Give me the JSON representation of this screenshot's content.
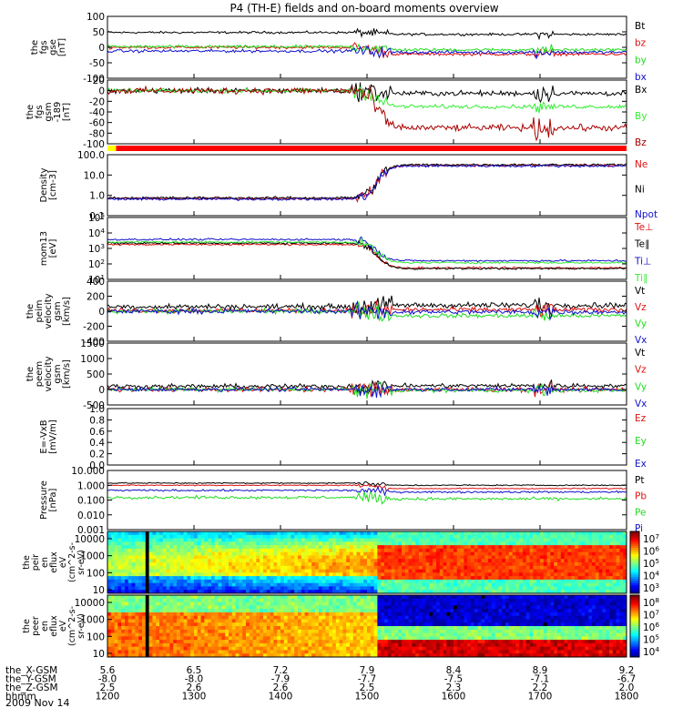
{
  "title": "P4 (TH-E) fields and on-board moments overview",
  "date_label": "2009 Nov 14",
  "colors": {
    "black": "#000000",
    "red": "#dd1111",
    "green": "#22dd22",
    "blue": "#1111cc",
    "darkred": "#aa0000",
    "bright_green": "#33ee33",
    "bar_yellow": "#ffff00",
    "bar_red": "#ff0000"
  },
  "chart_data": {
    "type": "line",
    "x_range": [
      "1200",
      "1800"
    ],
    "ephemeris": {
      "row_labels": [
        "the_X-GSM",
        "the_Y-GSM",
        "the_Z-GSM",
        "hhmm"
      ],
      "columns": [
        [
          "5.6",
          "-8.0",
          "2.5",
          "1200"
        ],
        [
          "6.5",
          "-8.0",
          "2.6",
          "1300"
        ],
        [
          "7.2",
          "-7.9",
          "2.6",
          "1400"
        ],
        [
          "7.9",
          "-7.7",
          "2.5",
          "1500"
        ],
        [
          "8.4",
          "-7.5",
          "2.3",
          "1600"
        ],
        [
          "8.9",
          "-7.1",
          "2.2",
          "1700"
        ],
        [
          "9.2",
          "-6.7",
          "2.0",
          "1800"
        ]
      ]
    },
    "mode_bar": [
      {
        "from": "1200",
        "to": "1210",
        "color": "yellow"
      },
      {
        "from": "1210",
        "to": "1800",
        "color": "red"
      }
    ],
    "panels": [
      {
        "id": "fgs_gse",
        "ylabel": [
          "the",
          "fgs",
          "gse",
          "[nT]"
        ],
        "scale": "linear",
        "ylim": [
          -100,
          100
        ],
        "ticks": [
          "100",
          "50",
          "0",
          "-50",
          "-100"
        ],
        "series": [
          {
            "name": "Bt",
            "color": "black",
            "pre": 48,
            "post": 42,
            "noise": 3
          },
          {
            "name": "bz",
            "color": "red",
            "pre": 0,
            "post": -22,
            "noise": 4
          },
          {
            "name": "by",
            "color": "green",
            "pre": 2,
            "post": -8,
            "noise": 4
          },
          {
            "name": "bx",
            "color": "blue",
            "pre": -12,
            "post": -16,
            "noise": 4
          }
        ]
      },
      {
        "id": "fgs_gsm",
        "ylabel": [
          "the",
          "fgs",
          "gsm",
          "-189",
          "[nT]"
        ],
        "scale": "linear",
        "ylim": [
          -100,
          20
        ],
        "ticks": [
          "20",
          "0",
          "-20",
          "-40",
          "-60",
          "-80",
          "-100"
        ],
        "series": [
          {
            "name": "Bx",
            "color": "black",
            "pre": 0,
            "post": -5,
            "noise": 4
          },
          {
            "name": "By",
            "color": "bright_green",
            "pre": 0,
            "post": -30,
            "noise": 3
          },
          {
            "name": "Bz",
            "color": "darkred",
            "pre": 0,
            "post": -70,
            "noise": 5
          }
        ]
      },
      {
        "id": "density",
        "ylabel": [
          "Density",
          "[cm-3]"
        ],
        "scale": "log",
        "ylim": [
          0.1,
          100
        ],
        "ticks": [
          "100.0",
          "10.0",
          "1.0",
          "0.1"
        ],
        "series": [
          {
            "name": "Ne",
            "color": "red",
            "pre": 0.7,
            "post": 30,
            "noise": 0.05
          },
          {
            "name": "Ni",
            "color": "black",
            "pre": 0.75,
            "post": 32,
            "noise": 0.05
          },
          {
            "name": "Npot",
            "color": "blue",
            "pre": 0.65,
            "post": 28,
            "noise": 0.05
          }
        ]
      },
      {
        "id": "temperature",
        "ylabel": [
          "mom13",
          "[eV]"
        ],
        "scale": "log",
        "ylim": [
          10,
          100000
        ],
        "ticks": [
          "10^5",
          "10^4",
          "10^3",
          "10^2",
          "10^1"
        ],
        "series": [
          {
            "name": "Te⊥",
            "color": "red",
            "pre": 1800,
            "post": 55,
            "noise": 0.05
          },
          {
            "name": "Te∥",
            "color": "black",
            "pre": 2200,
            "post": 50,
            "noise": 0.05
          },
          {
            "name": "Ti⊥",
            "color": "blue",
            "pre": 3800,
            "post": 160,
            "noise": 0.05
          },
          {
            "name": "Ti∥",
            "color": "bright_green",
            "pre": 2600,
            "post": 120,
            "noise": 0.05
          }
        ]
      },
      {
        "id": "peim_velocity",
        "ylabel": [
          "the",
          "peim",
          "velocity",
          "gsm",
          "[km/s]"
        ],
        "scale": "linear",
        "ylim": [
          -400,
          400
        ],
        "ticks": [
          "400",
          "200",
          "0",
          "-200",
          "-400"
        ],
        "series": [
          {
            "name": "Vt",
            "color": "black",
            "pre": 60,
            "post": 80,
            "noise": 30
          },
          {
            "name": "Vz",
            "color": "red",
            "pre": 10,
            "post": 20,
            "noise": 25
          },
          {
            "name": "Vy",
            "color": "green",
            "pre": 0,
            "post": -60,
            "noise": 25
          },
          {
            "name": "Vx",
            "color": "blue",
            "pre": 0,
            "post": -10,
            "noise": 25
          }
        ]
      },
      {
        "id": "peem_velocity",
        "ylabel": [
          "the",
          "peem",
          "velocity",
          "gsm",
          "[km/s]"
        ],
        "scale": "linear",
        "ylim": [
          -500,
          1500
        ],
        "ticks": [
          "1500",
          "1000",
          "500",
          "0",
          "-500"
        ],
        "series": [
          {
            "name": "Vt",
            "color": "black",
            "pre": 100,
            "post": 120,
            "noise": 60
          },
          {
            "name": "Vz",
            "color": "red",
            "pre": 0,
            "post": 0,
            "noise": 60
          },
          {
            "name": "Vy",
            "color": "green",
            "pre": 0,
            "post": -30,
            "noise": 50
          },
          {
            "name": "Vx",
            "color": "blue",
            "pre": 0,
            "post": 0,
            "noise": 50
          }
        ]
      },
      {
        "id": "efield",
        "ylabel": [
          "E=-VxB",
          "[mV/m]"
        ],
        "scale": "linear",
        "ylim": [
          0,
          1
        ],
        "ticks": [
          "1.0",
          "0.8",
          "0.6",
          "0.4",
          "0.2",
          "0.0"
        ],
        "series": [
          {
            "name": "Ez",
            "color": "red"
          },
          {
            "name": "Ey",
            "color": "green"
          },
          {
            "name": "Ex",
            "color": "blue"
          }
        ]
      },
      {
        "id": "pressure",
        "ylabel": [
          "Pressure",
          "[nPa]"
        ],
        "scale": "log",
        "ylim": [
          0.001,
          10
        ],
        "ticks": [
          "10.000",
          "1.000",
          "0.100",
          "0.010",
          "0.001"
        ],
        "series": [
          {
            "name": "Pt",
            "color": "black",
            "pre": 1.4,
            "post": 1.0,
            "noise": 0.03
          },
          {
            "name": "Pb",
            "color": "red",
            "pre": 1.0,
            "post": 0.6,
            "noise": 0.03
          },
          {
            "name": "Pe",
            "color": "green",
            "pre": 0.15,
            "post": 0.12,
            "noise": 0.08
          },
          {
            "name": "Pi",
            "color": "blue",
            "pre": 0.45,
            "post": 0.35,
            "noise": 0.05
          }
        ]
      }
    ],
    "spectrograms": [
      {
        "id": "peir_en_eflux",
        "ylabel": [
          "the",
          "peir",
          "en",
          "eflux",
          "eV",
          "(cm^2-s-",
          "sr-eV)"
        ],
        "yticks": [
          "10000",
          "1000",
          "100",
          "10"
        ],
        "colorbar_ticks": [
          "10^7",
          "10^6",
          "10^5",
          "10^4",
          "10^3"
        ]
      },
      {
        "id": "peer_en_eflux",
        "ylabel": [
          "the",
          "peer",
          "en",
          "eflux",
          "eV",
          "(cm^2-s-",
          "sr-eV)"
        ],
        "yticks": [
          "10000",
          "1000",
          "100",
          "10"
        ],
        "colorbar_ticks": [
          "10^8",
          "10^7",
          "10^6",
          "10^5",
          "10^4"
        ]
      }
    ]
  }
}
